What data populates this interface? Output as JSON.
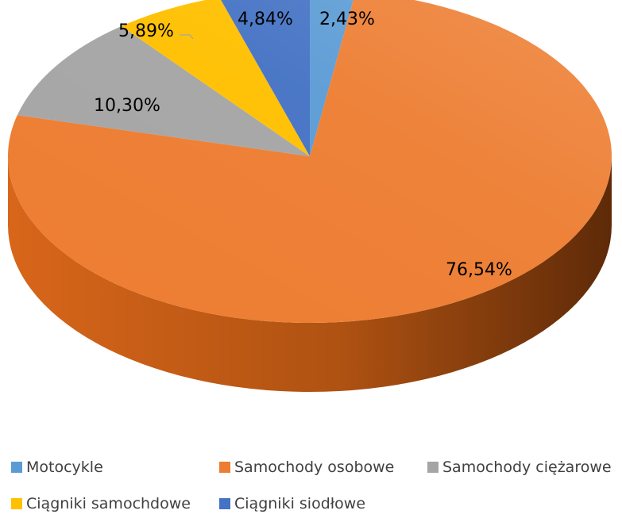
{
  "chart_data": {
    "type": "pie",
    "style": "3d",
    "title": "",
    "legend_position": "bottom",
    "slices": [
      {
        "name": "Motocykle",
        "value": 2.43,
        "label": "2,43%",
        "color": "#5B9BD5"
      },
      {
        "name": "Samochody osobowe",
        "value": 76.54,
        "label": "76,54%",
        "color": "#ED7D31"
      },
      {
        "name": "Samochody ciężarowe",
        "value": 10.3,
        "label": "10,30%",
        "color": "#A5A5A5"
      },
      {
        "name": "Ciągniki samochdowe",
        "value": 5.89,
        "label": "5,89%",
        "color": "#FFC000"
      },
      {
        "name": "Ciągniki siodłowe",
        "value": 4.84,
        "label": "4,84%",
        "color": "#4472C4"
      }
    ]
  }
}
